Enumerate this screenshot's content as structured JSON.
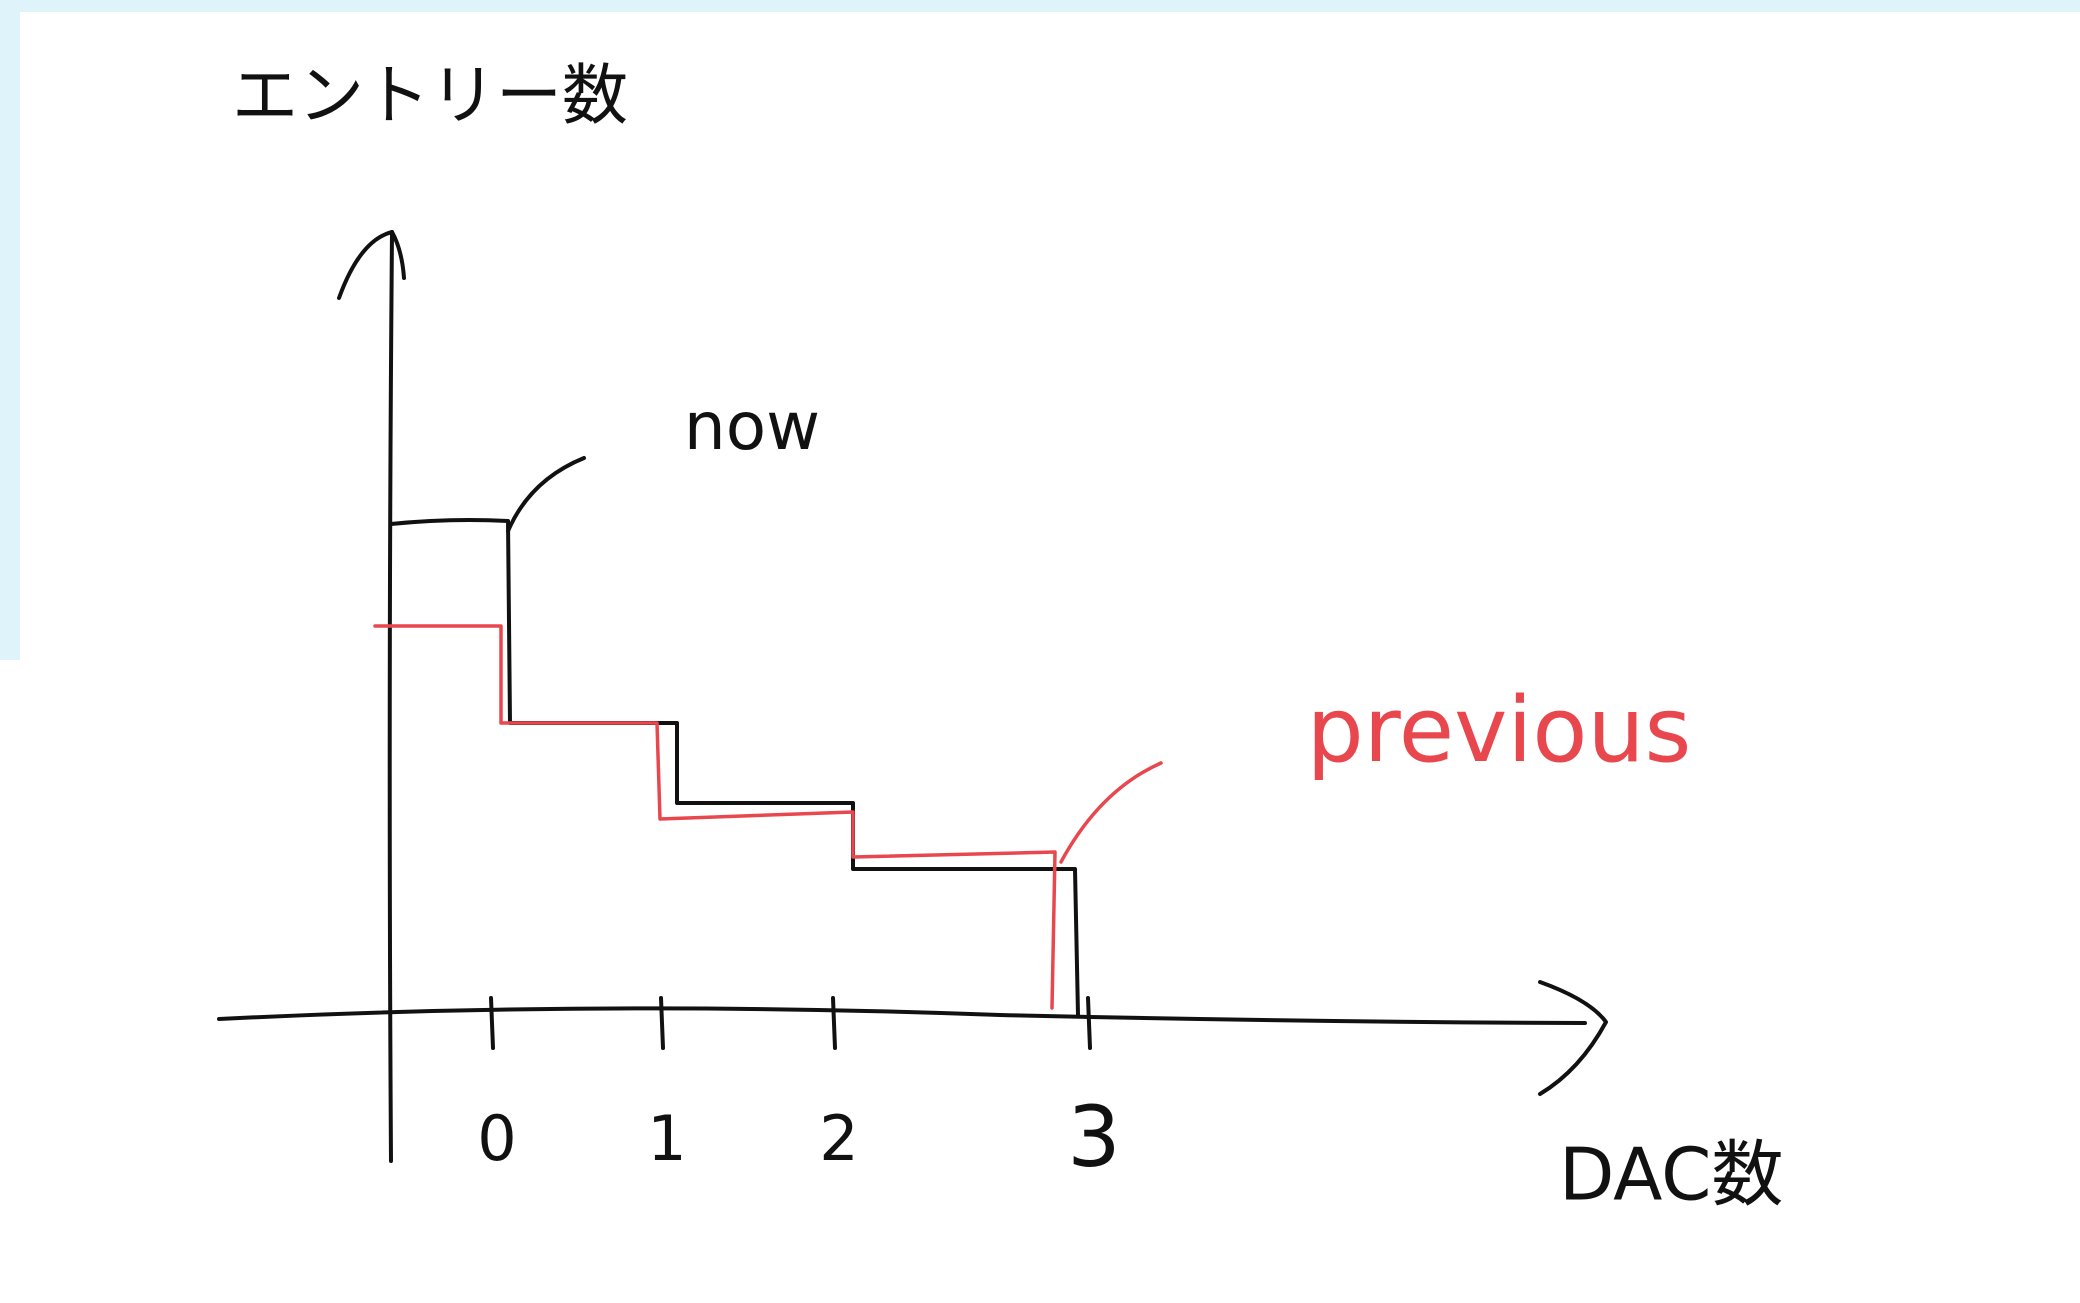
{
  "axes": {
    "y_label": "エントリー数",
    "x_label": "DAC数",
    "x_ticks": [
      "0",
      "1",
      "2",
      "3"
    ]
  },
  "series": [
    {
      "label": "now"
    },
    {
      "label": "previous"
    }
  ]
}
